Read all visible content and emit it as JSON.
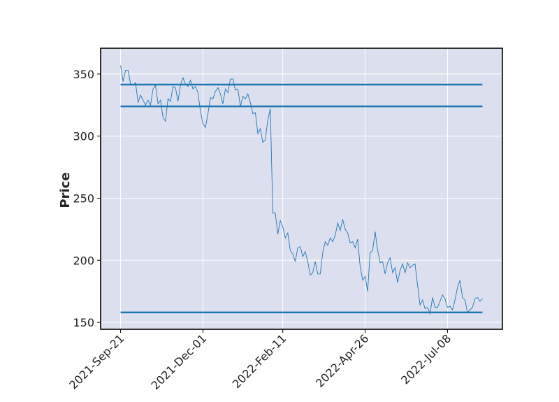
{
  "chart_data": {
    "type": "line",
    "ylabel": "Price",
    "values": [
      357,
      344,
      353,
      353,
      342,
      341,
      343,
      327,
      333,
      329,
      325,
      329,
      325,
      338,
      341,
      326,
      329,
      315,
      312,
      330,
      328,
      340,
      339,
      328,
      341,
      347,
      342,
      340,
      345,
      338,
      340,
      335,
      320,
      310,
      307,
      318,
      331,
      330,
      336,
      339,
      334,
      326,
      338,
      335,
      346,
      346,
      337,
      338,
      324,
      332,
      330,
      334,
      327,
      318,
      319,
      302,
      306,
      295,
      297,
      313,
      322,
      238,
      238,
      221,
      232,
      227,
      218,
      222,
      208,
      205,
      199,
      210,
      211,
      203,
      207,
      199,
      188,
      190,
      199,
      189,
      189,
      206,
      215,
      212,
      218,
      215,
      220,
      230,
      224,
      233,
      225,
      222,
      214,
      215,
      210,
      217,
      195,
      184,
      187,
      175,
      206,
      208,
      223,
      208,
      198,
      199,
      189,
      198,
      202,
      190,
      194,
      182,
      192,
      197,
      190,
      198,
      194,
      196,
      197,
      180,
      164,
      168,
      161,
      162,
      157,
      170,
      162,
      162,
      167,
      172,
      169,
      162,
      163,
      160,
      168,
      178,
      184,
      170,
      168,
      158,
      160,
      162,
      169,
      170,
      167,
      169
    ],
    "color": "#1f77b4",
    "hlines": [
      341.5,
      324,
      158
    ],
    "hline_color": "#1f77b4",
    "xlim": [
      -8,
      153
    ],
    "xticks": [
      {
        "value": 0,
        "label": "2021-Sep-21"
      },
      {
        "value": 33,
        "label": "2021-Dec-01"
      },
      {
        "value": 65,
        "label": "2022-Feb-11"
      },
      {
        "value": 98,
        "label": "2022-Apr-26"
      },
      {
        "value": 131,
        "label": "2022-Jul-08"
      }
    ],
    "ylim": [
      144.4,
      370.8
    ],
    "yticks": [
      150,
      200,
      250,
      300,
      350
    ],
    "grid": true,
    "background": "#dce0ee"
  }
}
